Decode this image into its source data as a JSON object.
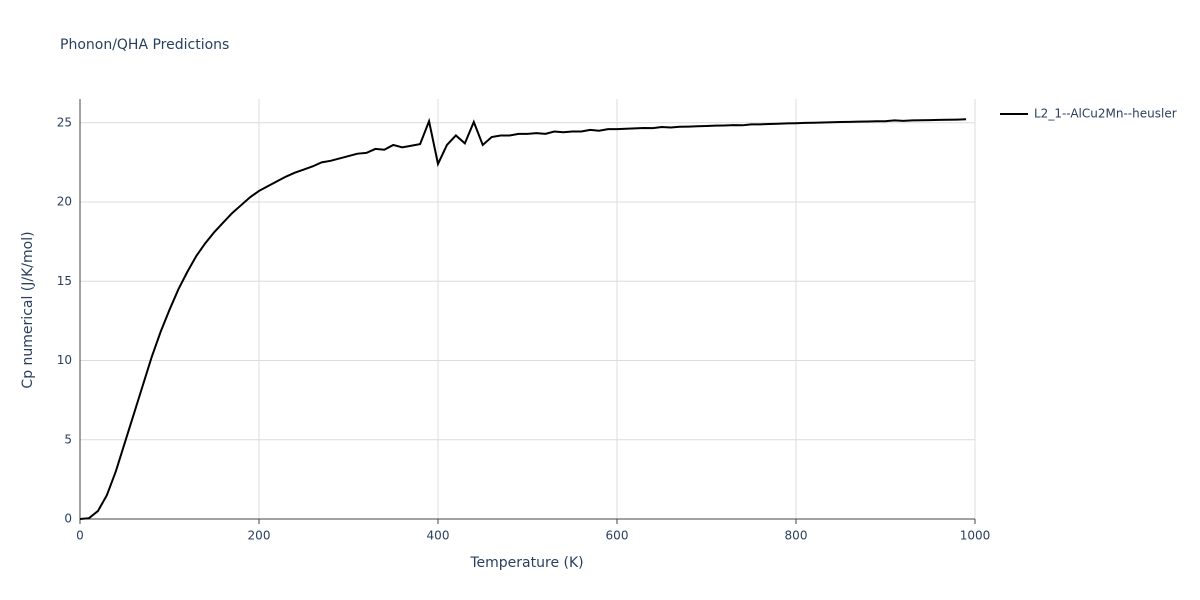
{
  "chart_data": {
    "type": "line",
    "title": "Phonon/QHA Predictions",
    "x_label": "Temperature (K)",
    "y_label": "Cp numerical (J/K/mol)",
    "x": [
      0,
      10,
      20,
      30,
      40,
      50,
      60,
      70,
      80,
      90,
      100,
      110,
      120,
      130,
      140,
      150,
      160,
      170,
      180,
      190,
      200,
      210,
      220,
      230,
      240,
      250,
      260,
      270,
      280,
      290,
      300,
      310,
      320,
      330,
      340,
      350,
      360,
      370,
      380,
      390,
      400,
      410,
      420,
      430,
      440,
      450,
      460,
      470,
      480,
      490,
      500,
      510,
      520,
      530,
      540,
      550,
      560,
      570,
      580,
      590,
      600,
      610,
      620,
      630,
      640,
      650,
      660,
      670,
      680,
      690,
      700,
      710,
      720,
      730,
      740,
      750,
      760,
      770,
      780,
      790,
      800,
      810,
      820,
      830,
      840,
      850,
      860,
      870,
      880,
      890,
      900,
      910,
      920,
      930,
      940,
      950,
      960,
      970,
      980,
      990
    ],
    "series": [
      {
        "name": "L2_1--AlCu2Mn--heusler",
        "color": "#000000",
        "values": [
          0,
          0.05,
          0.5,
          1.5,
          3.0,
          4.8,
          6.6,
          8.4,
          10.2,
          11.8,
          13.2,
          14.5,
          15.6,
          16.6,
          17.4,
          18.1,
          18.7,
          19.3,
          19.8,
          20.3,
          20.7,
          21.0,
          21.3,
          21.6,
          21.85,
          22.05,
          22.25,
          22.5,
          22.6,
          22.75,
          22.9,
          23.05,
          23.1,
          23.35,
          23.3,
          23.6,
          23.45,
          23.55,
          23.65,
          25.1,
          22.4,
          23.6,
          24.2,
          23.7,
          25.05,
          23.6,
          24.1,
          24.2,
          24.2,
          24.3,
          24.3,
          24.35,
          24.3,
          24.45,
          24.4,
          24.45,
          24.45,
          24.55,
          24.5,
          24.6,
          24.6,
          24.62,
          24.65,
          24.67,
          24.66,
          24.73,
          24.7,
          24.75,
          24.76,
          24.78,
          24.8,
          24.82,
          24.83,
          24.85,
          24.84,
          24.9,
          24.9,
          24.92,
          24.94,
          24.96,
          24.97,
          24.99,
          25.0,
          25.02,
          25.03,
          25.05,
          25.06,
          25.07,
          25.08,
          25.1,
          25.1,
          25.15,
          25.12,
          25.15,
          25.16,
          25.17,
          25.18,
          25.19,
          25.2,
          25.22
        ]
      }
    ],
    "xlim": [
      0,
      1000
    ],
    "xticks": [
      0,
      200,
      400,
      600,
      800,
      1000
    ],
    "ylim": [
      0,
      26.5
    ],
    "yticks": [
      0,
      5,
      10,
      15,
      20,
      25
    ],
    "grid": true
  }
}
